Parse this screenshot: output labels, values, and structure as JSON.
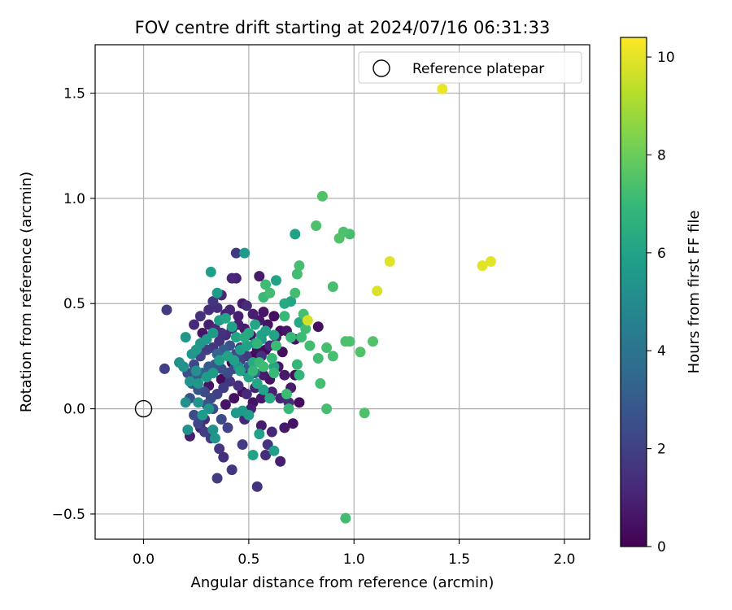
{
  "chart_data": {
    "type": "scatter",
    "title": "FOV centre drift starting at 2024/07/16 06:31:33",
    "xlabel": "Angular distance from reference (arcmin)",
    "ylabel": "Rotation from reference (arcmin)",
    "xlim": [
      -0.23,
      2.12
    ],
    "ylim": [
      -0.62,
      1.73
    ],
    "xticks": [
      0.0,
      0.5,
      1.0,
      1.5,
      2.0
    ],
    "xtick_labels": [
      "0.0",
      "0.5",
      "1.0",
      "1.5",
      "2.0"
    ],
    "yticks": [
      -0.5,
      0.0,
      0.5,
      1.0,
      1.5
    ],
    "ytick_labels": [
      "−0.5",
      "0.0",
      "0.5",
      "1.0",
      "1.5"
    ],
    "grid": true,
    "legend": {
      "placement": "top-right",
      "entries": [
        "Reference platepar"
      ]
    },
    "reference_point": {
      "label": "Reference platepar",
      "x": 0.0,
      "y": 0.0
    },
    "colorbar": {
      "label": "Hours from first FF file",
      "range": [
        0,
        10.4
      ],
      "ticks": [
        0,
        2,
        4,
        6,
        8,
        10
      ],
      "tick_labels": [
        "0",
        "2",
        "4",
        "6",
        "8",
        "10"
      ],
      "colormap": "viridis",
      "colors": [
        "#440154",
        "#482878",
        "#3e4989",
        "#31688e",
        "#26828e",
        "#1f9e89",
        "#35b779",
        "#6ece58",
        "#b5de2b",
        "#fde725"
      ]
    },
    "series": [
      {
        "columns": [
          "x",
          "y",
          "hours"
        ],
        "points": [
          [
            1.42,
            1.52,
            10.1
          ],
          [
            1.61,
            0.68,
            10.0
          ],
          [
            1.65,
            0.7,
            10.0
          ],
          [
            1.17,
            0.7,
            9.9
          ],
          [
            1.11,
            0.56,
            9.8
          ],
          [
            0.78,
            0.42,
            9.7
          ],
          [
            0.85,
            1.01,
            7.5
          ],
          [
            0.82,
            0.87,
            7.4
          ],
          [
            0.93,
            0.81,
            7.5
          ],
          [
            0.95,
            0.84,
            7.4
          ],
          [
            0.98,
            0.83,
            7.3
          ],
          [
            0.74,
            0.68,
            7.3
          ],
          [
            0.73,
            0.64,
            7.2
          ],
          [
            0.72,
            0.55,
            7.2
          ],
          [
            0.9,
            0.58,
            7.3
          ],
          [
            0.76,
            0.45,
            7.3
          ],
          [
            0.77,
            0.38,
            7.2
          ],
          [
            0.75,
            0.34,
            7.1
          ],
          [
            0.79,
            0.3,
            7.2
          ],
          [
            0.83,
            0.24,
            7.2
          ],
          [
            0.87,
            0.29,
            7.3
          ],
          [
            0.9,
            0.25,
            7.3
          ],
          [
            0.96,
            0.32,
            7.4
          ],
          [
            0.98,
            0.32,
            7.4
          ],
          [
            1.03,
            0.27,
            7.5
          ],
          [
            1.09,
            0.32,
            7.5
          ],
          [
            0.84,
            0.12,
            7.3
          ],
          [
            0.87,
            0.0,
            7.3
          ],
          [
            1.05,
            -0.02,
            7.4
          ],
          [
            0.96,
            -0.52,
            7.2
          ],
          [
            0.67,
            0.44,
            7.0
          ],
          [
            0.7,
            0.34,
            7.0
          ],
          [
            0.73,
            0.21,
            6.9
          ],
          [
            0.74,
            0.16,
            6.8
          ],
          [
            0.68,
            0.07,
            7.1
          ],
          [
            0.69,
            0.0,
            7.0
          ],
          [
            0.63,
            0.3,
            7.1
          ],
          [
            0.61,
            0.24,
            7.0
          ],
          [
            0.62,
            0.17,
            7.0
          ],
          [
            0.58,
            0.59,
            7.1
          ],
          [
            0.6,
            0.55,
            7.2
          ],
          [
            0.57,
            0.53,
            7.0
          ],
          [
            0.55,
            0.22,
            7.0
          ],
          [
            0.57,
            0.2,
            7.1
          ],
          [
            0.52,
            0.18,
            6.9
          ],
          [
            0.54,
            0.31,
            6.8
          ],
          [
            0.72,
            0.83,
            5.9
          ],
          [
            0.48,
            0.74,
            5.6
          ],
          [
            0.32,
            0.65,
            5.8
          ],
          [
            0.35,
            0.55,
            5.7
          ],
          [
            0.63,
            0.61,
            6.0
          ],
          [
            0.67,
            0.5,
            6.3
          ],
          [
            0.7,
            0.51,
            6.1
          ],
          [
            0.74,
            0.41,
            6.2
          ],
          [
            0.62,
            0.35,
            6.0
          ],
          [
            0.58,
            0.37,
            5.9
          ],
          [
            0.56,
            0.33,
            5.8
          ],
          [
            0.53,
            0.31,
            5.7
          ],
          [
            0.49,
            0.3,
            5.9
          ],
          [
            0.46,
            0.28,
            5.8
          ],
          [
            0.44,
            0.34,
            6.0
          ],
          [
            0.42,
            0.39,
            5.9
          ],
          [
            0.39,
            0.43,
            6.1
          ],
          [
            0.36,
            0.42,
            5.8
          ],
          [
            0.33,
            0.36,
            5.7
          ],
          [
            0.3,
            0.33,
            5.6
          ],
          [
            0.27,
            0.31,
            5.5
          ],
          [
            0.25,
            0.28,
            5.6
          ],
          [
            0.23,
            0.26,
            5.4
          ],
          [
            0.2,
            0.34,
            5.5
          ],
          [
            0.17,
            0.22,
            5.2
          ],
          [
            0.19,
            0.2,
            5.3
          ],
          [
            0.22,
            0.13,
            5.4
          ],
          [
            0.26,
            0.12,
            5.5
          ],
          [
            0.3,
            0.15,
            5.6
          ],
          [
            0.33,
            0.17,
            5.7
          ],
          [
            0.36,
            0.23,
            5.8
          ],
          [
            0.4,
            0.25,
            5.9
          ],
          [
            0.43,
            0.23,
            5.9
          ],
          [
            0.46,
            0.18,
            6.0
          ],
          [
            0.5,
            0.15,
            6.0
          ],
          [
            0.54,
            0.12,
            6.1
          ],
          [
            0.57,
            0.09,
            6.0
          ],
          [
            0.6,
            0.05,
            6.2
          ],
          [
            0.62,
            0.2,
            6.1
          ],
          [
            0.52,
            0.22,
            6.3
          ],
          [
            0.48,
            0.34,
            6.3
          ],
          [
            0.5,
            0.36,
            6.2
          ],
          [
            0.53,
            0.4,
            6.1
          ],
          [
            0.56,
            0.35,
            5.9
          ],
          [
            0.45,
            0.2,
            5.4
          ],
          [
            0.44,
            -0.02,
            5.6
          ],
          [
            0.47,
            -0.01,
            5.7
          ],
          [
            0.5,
            -0.03,
            5.8
          ],
          [
            0.52,
            -0.22,
            6.0
          ],
          [
            0.55,
            -0.12,
            5.9
          ],
          [
            0.62,
            -0.2,
            5.8
          ],
          [
            0.34,
            -0.14,
            5.5
          ],
          [
            0.28,
            -0.03,
            5.6
          ],
          [
            0.26,
            0.03,
            5.4
          ],
          [
            0.21,
            -0.1,
            5.3
          ],
          [
            0.2,
            0.03,
            5.2
          ],
          [
            0.25,
            0.18,
            5.2
          ],
          [
            0.31,
            0.0,
            5.4
          ],
          [
            0.33,
            -0.1,
            5.3
          ],
          [
            0.11,
            0.47,
            1.9
          ],
          [
            0.1,
            0.19,
            2.0
          ],
          [
            0.44,
            0.74,
            1.8
          ],
          [
            0.42,
            0.62,
            1.2
          ],
          [
            0.44,
            0.62,
            1.0
          ],
          [
            0.55,
            0.63,
            0.8
          ],
          [
            0.24,
            0.4,
            1.2
          ],
          [
            0.27,
            0.44,
            1.5
          ],
          [
            0.31,
            0.47,
            1.3
          ],
          [
            0.33,
            0.51,
            1.6
          ],
          [
            0.35,
            0.48,
            1.4
          ],
          [
            0.37,
            0.54,
            1.2
          ],
          [
            0.39,
            0.45,
            1.0
          ],
          [
            0.41,
            0.47,
            1.1
          ],
          [
            0.45,
            0.44,
            0.9
          ],
          [
            0.47,
            0.5,
            0.8
          ],
          [
            0.49,
            0.49,
            1.3
          ],
          [
            0.52,
            0.45,
            0.9
          ],
          [
            0.55,
            0.42,
            0.7
          ],
          [
            0.57,
            0.46,
            0.6
          ],
          [
            0.59,
            0.4,
            0.5
          ],
          [
            0.62,
            0.44,
            0.4
          ],
          [
            0.65,
            0.37,
            0.3
          ],
          [
            0.68,
            0.37,
            0.6
          ],
          [
            0.72,
            0.33,
            0.5
          ],
          [
            0.83,
            0.39,
            0.4
          ],
          [
            0.66,
            0.27,
            0.4
          ],
          [
            0.64,
            0.2,
            0.6
          ],
          [
            0.67,
            0.16,
            0.7
          ],
          [
            0.7,
            0.1,
            0.8
          ],
          [
            0.72,
            0.16,
            0.3
          ],
          [
            0.6,
            0.14,
            0.5
          ],
          [
            0.57,
            0.16,
            0.8
          ],
          [
            0.53,
            0.1,
            1.0
          ],
          [
            0.49,
            0.07,
            1.2
          ],
          [
            0.45,
            0.11,
            1.4
          ],
          [
            0.41,
            0.13,
            1.6
          ],
          [
            0.38,
            0.1,
            1.8
          ],
          [
            0.35,
            0.07,
            2.0
          ],
          [
            0.32,
            0.05,
            2.2
          ],
          [
            0.29,
            0.08,
            2.4
          ],
          [
            0.26,
            0.09,
            2.6
          ],
          [
            0.23,
            0.12,
            2.8
          ],
          [
            0.21,
            0.17,
            2.5
          ],
          [
            0.24,
            0.21,
            2.3
          ],
          [
            0.27,
            0.25,
            2.1
          ],
          [
            0.3,
            0.28,
            1.9
          ],
          [
            0.33,
            0.29,
            1.7
          ],
          [
            0.36,
            0.32,
            1.5
          ],
          [
            0.39,
            0.35,
            1.3
          ],
          [
            0.42,
            0.38,
            1.1
          ],
          [
            0.45,
            0.4,
            0.9
          ],
          [
            0.48,
            0.38,
            0.7
          ],
          [
            0.51,
            0.35,
            0.5
          ],
          [
            0.54,
            0.28,
            0.4
          ],
          [
            0.49,
            0.25,
            1.8
          ],
          [
            0.46,
            0.23,
            2.0
          ],
          [
            0.43,
            0.19,
            2.2
          ],
          [
            0.4,
            0.17,
            2.4
          ],
          [
            0.37,
            0.19,
            2.6
          ],
          [
            0.34,
            0.21,
            2.8
          ],
          [
            0.31,
            0.2,
            3.0
          ],
          [
            0.28,
            0.17,
            3.2
          ],
          [
            0.25,
            0.14,
            3.0
          ],
          [
            0.22,
            0.05,
            2.7
          ],
          [
            0.24,
            -0.03,
            2.4
          ],
          [
            0.26,
            -0.07,
            2.2
          ],
          [
            0.29,
            -0.11,
            2.0
          ],
          [
            0.32,
            -0.14,
            1.8
          ],
          [
            0.36,
            -0.19,
            1.6
          ],
          [
            0.38,
            -0.23,
            1.4
          ],
          [
            0.42,
            -0.29,
            1.7
          ],
          [
            0.35,
            -0.33,
            1.9
          ],
          [
            0.54,
            -0.37,
            1.5
          ],
          [
            0.58,
            -0.22,
            1.3
          ],
          [
            0.61,
            -0.11,
            1.1
          ],
          [
            0.65,
            -0.25,
            0.9
          ],
          [
            0.67,
            -0.09,
            0.7
          ],
          [
            0.71,
            -0.07,
            0.5
          ],
          [
            0.74,
            0.03,
            0.3
          ],
          [
            0.22,
            -0.13,
            0.9
          ],
          [
            0.27,
            -0.09,
            1.0
          ],
          [
            0.29,
            -0.05,
            1.3
          ],
          [
            0.48,
            -0.05,
            1.1
          ],
          [
            0.51,
            0.0,
            0.9
          ],
          [
            0.56,
            -0.08,
            0.8
          ],
          [
            0.59,
            -0.17,
            1.6
          ],
          [
            0.47,
            -0.17,
            1.9
          ],
          [
            0.4,
            -0.09,
            2.1
          ],
          [
            0.37,
            -0.05,
            2.3
          ],
          [
            0.33,
            0.0,
            2.5
          ],
          [
            0.3,
            0.02,
            2.7
          ],
          [
            0.39,
            0.02,
            0.6
          ],
          [
            0.43,
            0.05,
            0.4
          ],
          [
            0.47,
            0.08,
            0.3
          ],
          [
            0.52,
            0.03,
            0.5
          ],
          [
            0.56,
            0.05,
            0.7
          ],
          [
            0.61,
            0.08,
            0.9
          ],
          [
            0.65,
            0.05,
            1.1
          ],
          [
            0.69,
            0.03,
            1.3
          ],
          [
            0.46,
            0.29,
            1.6
          ],
          [
            0.44,
            0.26,
            2.4
          ],
          [
            0.41,
            0.3,
            2.7
          ],
          [
            0.38,
            0.28,
            3.1
          ],
          [
            0.35,
            0.26,
            3.4
          ],
          [
            0.5,
            0.2,
            2.9
          ],
          [
            0.53,
            0.17,
            3.2
          ],
          [
            0.56,
            0.25,
            1.4
          ],
          [
            0.6,
            0.3,
            1.2
          ],
          [
            0.63,
            0.34,
            1.0
          ],
          [
            0.58,
            0.28,
            0.3
          ],
          [
            0.52,
            0.25,
            0.2
          ],
          [
            0.48,
            0.18,
            0.1
          ],
          [
            0.42,
            0.22,
            0.2
          ],
          [
            0.37,
            0.14,
            0.3
          ],
          [
            0.31,
            0.11,
            0.5
          ],
          [
            0.28,
            0.36,
            0.6
          ],
          [
            0.31,
            0.4,
            0.9
          ],
          [
            0.34,
            0.38,
            1.2
          ],
          [
            0.37,
            0.36,
            1.5
          ]
        ]
      }
    ]
  }
}
